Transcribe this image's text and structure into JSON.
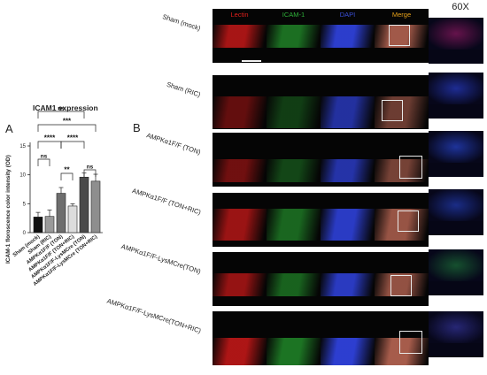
{
  "panels": {
    "a": "A",
    "b": "B"
  },
  "magnification_label": "60X",
  "columns": [
    {
      "label": "Lectin",
      "color": "#e0201c"
    },
    {
      "label": "ICAM-1",
      "color": "#2fb33a"
    },
    {
      "label": "DAPI",
      "color": "#3b4fd8"
    },
    {
      "label": "Merge",
      "color": "#e8a21a"
    }
  ],
  "rows": [
    {
      "label": "Sham (mock)"
    },
    {
      "label": "Sham (RIC)"
    },
    {
      "label": "AMPKα1F/F (TON)"
    },
    {
      "label": "AMPKα1F/F (TON+RIC)"
    },
    {
      "label": "AMPKα1F/F-LysMCre(TON)"
    },
    {
      "label": "AMPKα1F/F-LysMCre(TON+RIC)"
    }
  ],
  "chart_data": {
    "type": "bar",
    "title": "ICAM1 expression",
    "ylabel": "ICAM-1 floroscence color intensity (OD)",
    "ylim": [
      0,
      15
    ],
    "yticks": [
      0,
      5,
      10,
      15
    ],
    "categories": [
      "Sham (mock)",
      "Sham (RIC)",
      "AMPKα1F/F (TON)",
      "AMPKα1F/F (TON+RIC)",
      "AMPKα1F/F-LysMCre (TON)",
      "AMPKα1F/F-LysMCre (TON+RIC)"
    ],
    "values": [
      2.7,
      2.8,
      6.8,
      4.6,
      9.6,
      8.9
    ],
    "errors": [
      0.8,
      1.1,
      1.0,
      0.4,
      0.7,
      1.2
    ],
    "bar_colors": [
      "#111111",
      "#9a9a9a",
      "#6e6e6e",
      "#dcdcdc",
      "#4a4a4a",
      "#8e8e8e"
    ],
    "significance": [
      {
        "pair": [
          0,
          4
        ],
        "label": "ns"
      },
      {
        "pair": [
          0,
          5
        ],
        "label": "***"
      },
      {
        "pair": [
          0,
          2
        ],
        "label": "****"
      },
      {
        "pair": [
          2,
          4
        ],
        "label": "****"
      },
      {
        "pair": [
          0,
          1
        ],
        "label": "ns"
      },
      {
        "pair": [
          2,
          3
        ],
        "label": "**"
      },
      {
        "pair": [
          4,
          5
        ],
        "label": "ns"
      }
    ]
  }
}
